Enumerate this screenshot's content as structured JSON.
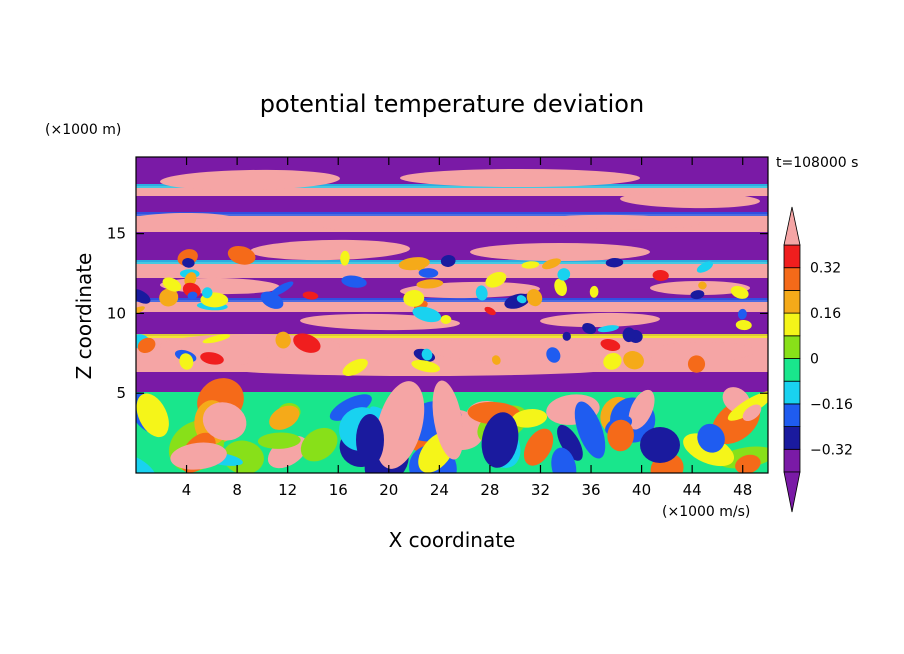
{
  "chart_data": {
    "type": "heatmap",
    "title": "potential temperature deviation",
    "time_label": "t=108000 s",
    "xlabel": "X coordinate",
    "ylabel": "Z coordinate",
    "x_unit": "(×1000 m/s)",
    "y_unit": "(×1000 m)",
    "xlim": [
      0,
      50
    ],
    "ylim": [
      0,
      19.8
    ],
    "x_ticks": [
      "4",
      "8",
      "12",
      "16",
      "20",
      "24",
      "28",
      "32",
      "36",
      "40",
      "44",
      "48"
    ],
    "x_tick_values": [
      4,
      8,
      12,
      16,
      20,
      24,
      28,
      32,
      36,
      40,
      44,
      48
    ],
    "y_ticks": [
      "5",
      "10",
      "15"
    ],
    "y_tick_values": [
      5,
      10,
      15
    ],
    "colorbar": {
      "labels": [
        "0.32",
        "0.16",
        "0",
        "−0.16",
        "−0.32"
      ],
      "label_values": [
        0.32,
        0.16,
        0,
        -0.16,
        -0.32
      ],
      "levels": [
        -0.4,
        -0.32,
        -0.24,
        -0.16,
        -0.08,
        0,
        0.08,
        0.16,
        0.24,
        0.32,
        0.4
      ],
      "colors": [
        "#7a1aa6",
        "#1a1a9e",
        "#1f5cf0",
        "#19d2f0",
        "#19e68c",
        "#88e019",
        "#f5f519",
        "#f5aa19",
        "#f56a19",
        "#f01e1e",
        "#f5a5a5"
      ],
      "extend": "both"
    }
  }
}
